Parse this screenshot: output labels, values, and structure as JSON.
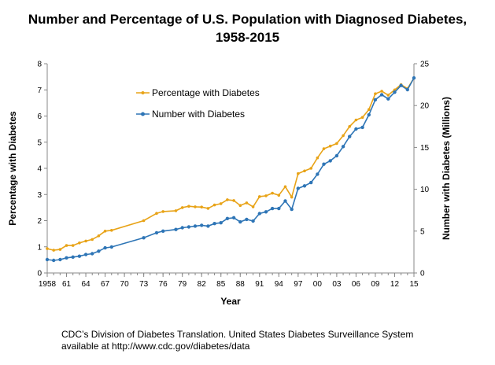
{
  "chart_data": {
    "type": "line",
    "title_line1": "Number and Percentage of U.S. Population with Diagnosed Diabetes,",
    "title_line2": "1958-2015",
    "xlabel": "Year",
    "ylabel_left": "Percentage with Diabetes",
    "ylabel_right": "Number with Diabetes (Millions)",
    "x_tick_labels": [
      "1958",
      "61",
      "64",
      "67",
      "70",
      "73",
      "76",
      "79",
      "82",
      "85",
      "88",
      "91",
      "94",
      "97",
      "00",
      "03",
      "06",
      "09",
      "12",
      "15"
    ],
    "y_left_ticks": [
      "0",
      "1",
      "2",
      "3",
      "4",
      "5",
      "6",
      "7",
      "8"
    ],
    "y_right_ticks": [
      "0",
      "5",
      "10",
      "15",
      "20",
      "25"
    ],
    "xlim": [
      1958,
      2015
    ],
    "ylim_left": [
      0,
      8
    ],
    "ylim_right": [
      0,
      25
    ],
    "grid": false,
    "legend_placement": "upper-left",
    "series": [
      {
        "name": "Percentage with Diabetes",
        "axis": "left",
        "color": "#E8A317",
        "x": [
          1958,
          1959,
          1960,
          1961,
          1962,
          1963,
          1964,
          1965,
          1966,
          1967,
          1968,
          1973,
          1975,
          1976,
          1978,
          1979,
          1980,
          1981,
          1982,
          1983,
          1984,
          1985,
          1986,
          1987,
          1988,
          1989,
          1990,
          1991,
          1992,
          1993,
          1994,
          1995,
          1996,
          1997,
          1998,
          1999,
          2000,
          2001,
          2002,
          2003,
          2004,
          2005,
          2006,
          2007,
          2008,
          2009,
          2010,
          2011,
          2012,
          2013,
          2014,
          2015
        ],
        "values": [
          0.93,
          0.87,
          0.9,
          1.05,
          1.05,
          1.15,
          1.22,
          1.28,
          1.42,
          1.6,
          1.63,
          2.0,
          2.28,
          2.35,
          2.38,
          2.5,
          2.55,
          2.53,
          2.52,
          2.47,
          2.6,
          2.65,
          2.8,
          2.77,
          2.58,
          2.68,
          2.53,
          2.92,
          2.95,
          3.05,
          2.97,
          3.3,
          2.9,
          3.8,
          3.9,
          4.0,
          4.4,
          4.75,
          4.85,
          4.95,
          5.25,
          5.6,
          5.85,
          5.95,
          6.25,
          6.85,
          6.95,
          6.8,
          7.0,
          7.2,
          7.05,
          7.45
        ]
      },
      {
        "name": "Number with Diabetes",
        "axis": "right",
        "color": "#2E75B6",
        "x": [
          1958,
          1959,
          1960,
          1961,
          1962,
          1963,
          1964,
          1965,
          1966,
          1967,
          1968,
          1973,
          1975,
          1976,
          1978,
          1979,
          1980,
          1981,
          1982,
          1983,
          1984,
          1985,
          1986,
          1987,
          1988,
          1989,
          1990,
          1991,
          1992,
          1993,
          1994,
          1995,
          1996,
          1997,
          1998,
          1999,
          2000,
          2001,
          2002,
          2003,
          2004,
          2005,
          2006,
          2007,
          2008,
          2009,
          2010,
          2011,
          2012,
          2013,
          2014,
          2015
        ],
        "values": [
          1.6,
          1.5,
          1.6,
          1.8,
          1.9,
          2.0,
          2.2,
          2.3,
          2.6,
          3.0,
          3.1,
          4.2,
          4.8,
          5.0,
          5.2,
          5.4,
          5.5,
          5.6,
          5.7,
          5.6,
          5.9,
          6.0,
          6.5,
          6.6,
          6.1,
          6.4,
          6.2,
          7.1,
          7.3,
          7.7,
          7.7,
          8.6,
          7.6,
          10.1,
          10.4,
          10.8,
          11.8,
          13.0,
          13.4,
          14.0,
          15.1,
          16.3,
          17.2,
          17.4,
          18.9,
          20.7,
          21.3,
          20.8,
          21.6,
          22.4,
          21.9,
          23.3
        ]
      }
    ]
  },
  "source_line1": "CDC’s Division of Diabetes Translation. United States Diabetes Surveillance System",
  "source_line2": "available at http://www.cdc.gov/diabetes/data"
}
